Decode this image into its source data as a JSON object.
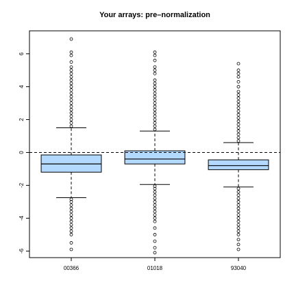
{
  "chart_data": {
    "type": "boxplot",
    "title": "Your arrays: pre–normalization",
    "xlabel": "",
    "ylabel": "",
    "ylim": [
      -6.4,
      7.4
    ],
    "yticks": [
      -6,
      -4,
      -2,
      0,
      2,
      4,
      6
    ],
    "reference_line": 0,
    "grid": false,
    "box_color": "#b3d9ff",
    "categories": [
      "00366",
      "01018",
      "93040"
    ],
    "boxes": [
      {
        "name": "00366",
        "whisker_low": -2.75,
        "q1": -1.2,
        "median": -0.7,
        "q3": -0.15,
        "whisker_high": 1.5,
        "outliers_high": [
          1.6,
          1.8,
          2.0,
          2.2,
          2.4,
          2.6,
          2.8,
          3.0,
          3.2,
          3.4,
          3.6,
          3.8,
          4.0,
          4.2,
          4.4,
          4.6,
          4.8,
          5.0,
          5.2,
          5.5,
          5.9,
          6.1,
          6.9
        ],
        "outliers_low": [
          -2.85,
          -3.0,
          -3.2,
          -3.4,
          -3.6,
          -3.8,
          -4.0,
          -4.2,
          -4.4,
          -4.6,
          -4.8,
          -5.0,
          -5.5,
          -5.9
        ]
      },
      {
        "name": "01018",
        "whisker_low": -1.95,
        "q1": -0.7,
        "median": -0.4,
        "q3": 0.1,
        "whisker_high": 1.3,
        "outliers_high": [
          1.4,
          1.6,
          1.8,
          2.0,
          2.2,
          2.4,
          2.6,
          2.8,
          3.0,
          3.2,
          3.4,
          3.6,
          3.8,
          4.0,
          4.2,
          4.4,
          4.8,
          5.0,
          5.2,
          5.6,
          5.9,
          6.1
        ],
        "outliers_low": [
          -2.05,
          -2.2,
          -2.4,
          -2.6,
          -2.8,
          -3.0,
          -3.2,
          -3.4,
          -3.6,
          -3.8,
          -4.0,
          -4.2,
          -4.6,
          -5.0,
          -5.4,
          -5.8,
          -6.1
        ]
      },
      {
        "name": "93040",
        "whisker_low": -2.1,
        "q1": -1.05,
        "median": -0.8,
        "q3": -0.45,
        "whisker_high": 0.6,
        "outliers_high": [
          0.7,
          0.9,
          1.1,
          1.3,
          1.5,
          1.7,
          1.9,
          2.1,
          2.3,
          2.5,
          2.7,
          2.9,
          3.1,
          3.3,
          3.5,
          3.7,
          4.0,
          4.3,
          4.6,
          4.8,
          5.0,
          5.4
        ],
        "outliers_low": [
          -2.2,
          -2.4,
          -2.6,
          -2.8,
          -3.0,
          -3.2,
          -3.4,
          -3.6,
          -3.8,
          -4.0,
          -4.2,
          -4.4,
          -4.6,
          -4.8,
          -5.0,
          -5.3,
          -5.6,
          -5.9
        ]
      }
    ]
  }
}
